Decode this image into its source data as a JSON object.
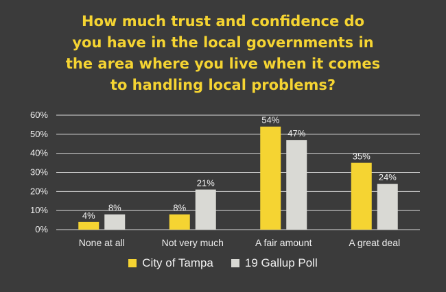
{
  "colors": {
    "background": "#3b3b3b",
    "title": "#f5d432",
    "series_1": "#f5d432",
    "series_2": "#d9d9d4",
    "grid": "#d8d8d8",
    "text": "#f0f0f0"
  },
  "chart_data": {
    "type": "bar",
    "title": "How much trust and confidence do you have in the local governments in the area where you live when it comes to handling local problems?",
    "title_lines": [
      "How much trust and confidence do",
      "you have in the local governments in",
      "the area where you live when it comes",
      "to handling local problems?"
    ],
    "categories": [
      "None at all",
      "Not very much",
      "A fair amount",
      "A great deal"
    ],
    "series": [
      {
        "name": "City of Tampa",
        "values": [
          4,
          8,
          54,
          35
        ],
        "labels": [
          "4%",
          "8%",
          "54%",
          "35%"
        ]
      },
      {
        "name": "19 Gallup Poll",
        "values": [
          8,
          21,
          47,
          24
        ],
        "labels": [
          "8%",
          "21%",
          "47%",
          "24%"
        ]
      }
    ],
    "yticks": [
      "0%",
      "10%",
      "20%",
      "30%",
      "40%",
      "50%",
      "60%"
    ],
    "ylim": [
      0,
      60
    ],
    "xlabel": "",
    "ylabel": "",
    "grid": true,
    "legend_position": "bottom"
  }
}
